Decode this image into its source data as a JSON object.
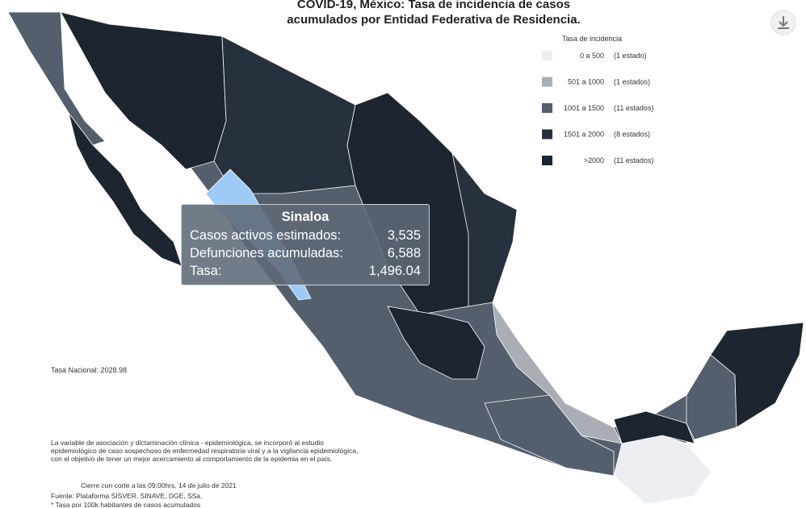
{
  "title": [
    "COVID-19, México: Tasa de incidencia de casos",
    "acumulados por Entidad Federativa de Residencia."
  ],
  "legend": {
    "title": "Tasa de incidencia",
    "items": [
      {
        "range": "0 a 500",
        "count": "(1 estado)",
        "color": "#eceef1"
      },
      {
        "range": "501 a 1000",
        "count": "(1 estados)",
        "color": "#a9aeb5"
      },
      {
        "range": "1001 a 1500",
        "count": "(11 estados)",
        "color": "#545e6c"
      },
      {
        "range": "1501 a 2000",
        "count": "(8 estados)",
        "color": "#27303d"
      },
      {
        "range": ">2000",
        "count": "(11 estados)",
        "color": "#1c2530"
      }
    ]
  },
  "tooltip": {
    "state": "Sinaloa",
    "rows": [
      {
        "label": "Casos activos estimados:",
        "value": "3,535"
      },
      {
        "label": "Defunciones acumuladas:",
        "value": "6,588"
      },
      {
        "label": "Tasa:",
        "value": "1,496.04"
      }
    ]
  },
  "national": "Tasa Nacional: 2028.98",
  "note": [
    "La variable de asociación y dictaminación clínica - epidemiológica, se incorporó al estudio",
    "epidemiológico de caso sospechoso de enfermedad respiratoria viral y a la vigilancia epidemiológica,",
    "con el objetivo de tener un mejor acercamiento al comportamiento de la epidemia en el país."
  ],
  "cutoff": "Cierre con corte a las 09:00hrs, 14 de julio de 2021",
  "source": [
    "Fuente: Plataforma SISVER, SINAVE, DGE, SSa.",
    "* Tasa por 100k habitantes de casos acumulados"
  ]
}
